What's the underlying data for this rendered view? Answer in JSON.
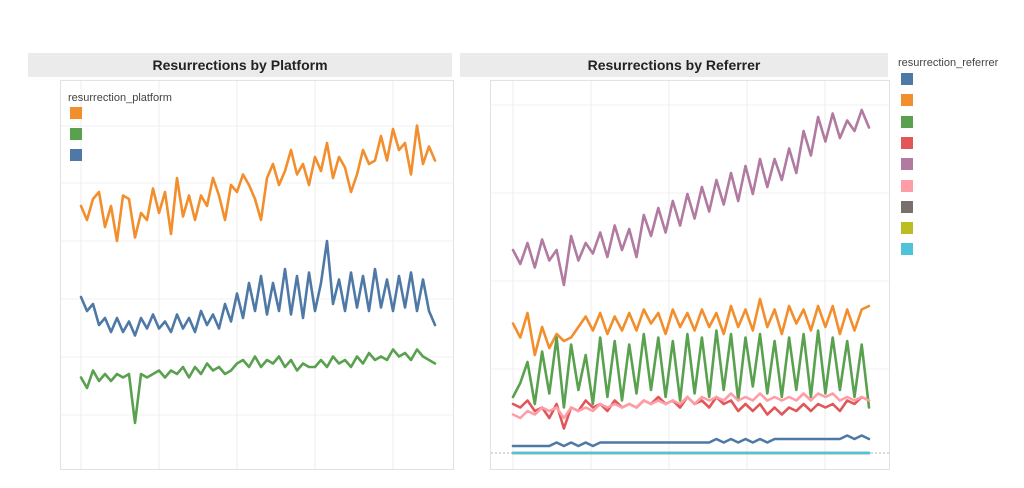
{
  "chart_data": [
    {
      "type": "line",
      "title": "Resurrections by Platform",
      "legend_title": "resurrection_platform",
      "legend_position": "top-left",
      "grid": true,
      "ylim": [
        0,
        100
      ],
      "series": [
        {
          "color": "#f28e2b",
          "values": [
            70,
            66,
            72,
            74,
            64,
            70,
            60,
            73,
            72,
            61,
            68,
            66,
            75,
            68,
            74,
            62,
            78,
            67,
            73,
            66,
            73,
            70,
            78,
            73,
            66,
            76,
            74,
            79,
            76,
            72,
            66,
            78,
            82,
            76,
            80,
            86,
            79,
            82,
            76,
            84,
            80,
            88,
            78,
            84,
            81,
            74,
            79,
            86,
            82,
            83,
            90,
            83,
            92,
            86,
            88,
            79,
            93,
            82,
            87,
            83
          ]
        },
        {
          "color": "#59a14f",
          "values": [
            21,
            18,
            23,
            20,
            22,
            20,
            22,
            21,
            22,
            8,
            22,
            21,
            22,
            23,
            21,
            23,
            22,
            24,
            21,
            24,
            22,
            25,
            23,
            24,
            22,
            23,
            25,
            26,
            24,
            27,
            24,
            26,
            25,
            27,
            24,
            26,
            23,
            25,
            24,
            24,
            26,
            24,
            27,
            25,
            26,
            24,
            27,
            25,
            28,
            26,
            27,
            26,
            29,
            27,
            28,
            26,
            29,
            27,
            26,
            25
          ]
        },
        {
          "color": "#4e79a7",
          "values": [
            44,
            40,
            42,
            36,
            38,
            34,
            38,
            34,
            37,
            33,
            38,
            35,
            39,
            35,
            37,
            34,
            39,
            35,
            38,
            34,
            40,
            36,
            39,
            35,
            42,
            37,
            45,
            38,
            48,
            40,
            50,
            39,
            48,
            40,
            52,
            39,
            50,
            38,
            51,
            40,
            48,
            60,
            42,
            49,
            40,
            51,
            41,
            50,
            40,
            52,
            41,
            49,
            40,
            50,
            41,
            51,
            40,
            49,
            40,
            36
          ]
        }
      ]
    },
    {
      "type": "line",
      "title": "Resurrections by Referrer",
      "legend_title": "resurrection_referrer",
      "legend_position": "right",
      "grid": true,
      "ylim": [
        0,
        100
      ],
      "series": [
        {
          "color": "#4e79a7",
          "values": [
            2,
            2,
            2,
            2,
            2,
            2,
            3,
            2,
            3,
            2,
            3,
            2,
            3,
            3,
            3,
            3,
            3,
            3,
            3,
            3,
            3,
            3,
            3,
            3,
            3,
            3,
            3,
            3,
            4,
            3,
            4,
            3,
            4,
            3,
            4,
            3,
            4,
            4,
            4,
            4,
            4,
            4,
            4,
            4,
            4,
            4,
            5,
            4,
            5,
            4
          ]
        },
        {
          "color": "#f28e2b",
          "values": [
            37,
            33,
            40,
            28,
            36,
            30,
            34,
            32,
            33,
            36,
            39,
            35,
            40,
            34,
            39,
            35,
            40,
            35,
            41,
            37,
            40,
            34,
            41,
            36,
            40,
            35,
            41,
            36,
            40,
            34,
            42,
            36,
            41,
            35,
            44,
            36,
            41,
            34,
            42,
            37,
            41,
            35,
            42,
            36,
            42,
            34,
            41,
            35,
            41,
            42
          ]
        },
        {
          "color": "#59a14f",
          "values": [
            16,
            20,
            26,
            14,
            29,
            17,
            33,
            13,
            31,
            18,
            28,
            14,
            33,
            16,
            32,
            15,
            31,
            17,
            34,
            18,
            33,
            16,
            32,
            15,
            34,
            17,
            33,
            16,
            35,
            18,
            34,
            15,
            33,
            19,
            34,
            17,
            32,
            16,
            33,
            18,
            34,
            16,
            35,
            17,
            33,
            18,
            32,
            16,
            31,
            13
          ]
        },
        {
          "color": "#e15759",
          "values": [
            14,
            13,
            15,
            12,
            13,
            10,
            14,
            7,
            13,
            12,
            15,
            13,
            14,
            12,
            15,
            13,
            14,
            13,
            15,
            14,
            16,
            14,
            15,
            13,
            16,
            14,
            15,
            13,
            16,
            14,
            15,
            12,
            14,
            12,
            14,
            11,
            13,
            11,
            13,
            12,
            14,
            12,
            14,
            13,
            14,
            12,
            15,
            14,
            16,
            15
          ]
        },
        {
          "color": "#b07aa1",
          "values": [
            58,
            54,
            60,
            53,
            61,
            55,
            58,
            48,
            62,
            55,
            60,
            57,
            63,
            56,
            65,
            58,
            64,
            56,
            68,
            62,
            70,
            63,
            72,
            65,
            74,
            67,
            76,
            69,
            78,
            71,
            80,
            72,
            82,
            74,
            84,
            76,
            84,
            78,
            87,
            80,
            92,
            85,
            96,
            89,
            97,
            90,
            95,
            92,
            98,
            93
          ]
        },
        {
          "color": "#ff9da7",
          "values": [
            11,
            10,
            12,
            11,
            13,
            12,
            13,
            10,
            13,
            12,
            13,
            12,
            14,
            13,
            14,
            13,
            14,
            13,
            15,
            14,
            15,
            14,
            15,
            14,
            16,
            14,
            16,
            15,
            16,
            15,
            17,
            15,
            16,
            15,
            17,
            15,
            16,
            15,
            16,
            15,
            17,
            15,
            17,
            16,
            17,
            15,
            16,
            15,
            16,
            15
          ]
        },
        {
          "color": "#79706e",
          "values": [
            0,
            0,
            0,
            0,
            0,
            0,
            0,
            0,
            0,
            0,
            0,
            0,
            0,
            0,
            0,
            0,
            0,
            0,
            0,
            0,
            0,
            0,
            0,
            0,
            0,
            0,
            0,
            0,
            0,
            0,
            0,
            0,
            0,
            0,
            0,
            0,
            0,
            0,
            0,
            0,
            0,
            0,
            0,
            0,
            0,
            0,
            0,
            0,
            0,
            0
          ]
        },
        {
          "color": "#bcbd22",
          "values": [
            0,
            0,
            0,
            0,
            0,
            0,
            0,
            0,
            0,
            0,
            0,
            0,
            0,
            0,
            0,
            0,
            0,
            0,
            0,
            0,
            0,
            0,
            0,
            0,
            0,
            0,
            0,
            0,
            0,
            0,
            0,
            0,
            0,
            0,
            0,
            0,
            0,
            0,
            0,
            0,
            0,
            0,
            0,
            0,
            0,
            0,
            0,
            0,
            0,
            0
          ]
        },
        {
          "color": "#4fc3d9",
          "values": [
            0,
            0,
            0,
            0,
            0,
            0,
            0,
            0,
            0,
            0,
            0,
            0,
            0,
            0,
            0,
            0,
            0,
            0,
            0,
            0,
            0,
            0,
            0,
            0,
            0,
            0,
            0,
            0,
            0,
            0,
            0,
            0,
            0,
            0,
            0,
            0,
            0,
            0,
            0,
            0,
            0,
            0,
            0,
            0,
            0,
            0,
            0,
            0,
            0,
            0
          ]
        }
      ]
    }
  ]
}
